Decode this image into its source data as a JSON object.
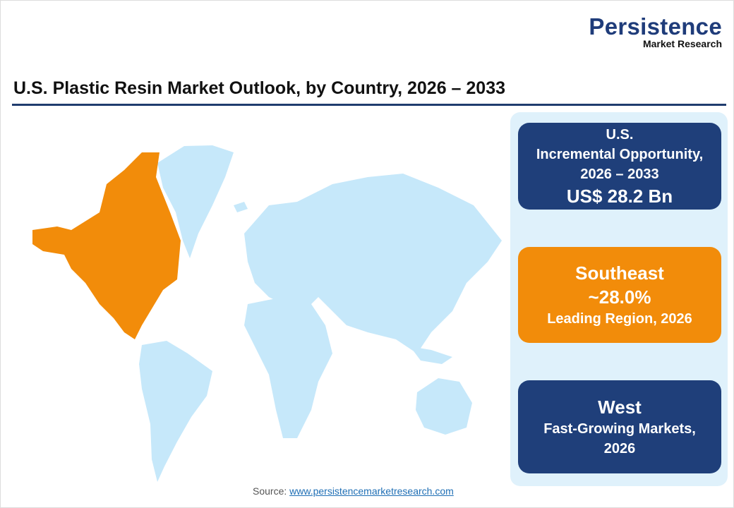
{
  "logo": {
    "line1": "Persistence",
    "line2": "Market Research"
  },
  "title": "U.S. Plastic Resin Market Outlook, by Country, 2026 – 2033",
  "cards": [
    {
      "line1": "U.S.",
      "line2": "Incremental Opportunity,",
      "line3": "2026 – 2033",
      "value": "US$ 28.2 Bn",
      "color": "#1f3f7a"
    },
    {
      "heading": "Southeast",
      "value": "~28.0%",
      "caption": "Leading Region, 2026",
      "color": "#f28c0a"
    },
    {
      "heading": "West",
      "caption_line1": "Fast-Growing Markets,",
      "caption_line2": "2026",
      "color": "#1f3f7a"
    }
  ],
  "map": {
    "highlight_color": "#f28c0a",
    "base_color": "#c6e8fa",
    "highlighted_region": "North America"
  },
  "source": {
    "label": "Source:",
    "link": "www.persistencemarketresearch.com"
  }
}
